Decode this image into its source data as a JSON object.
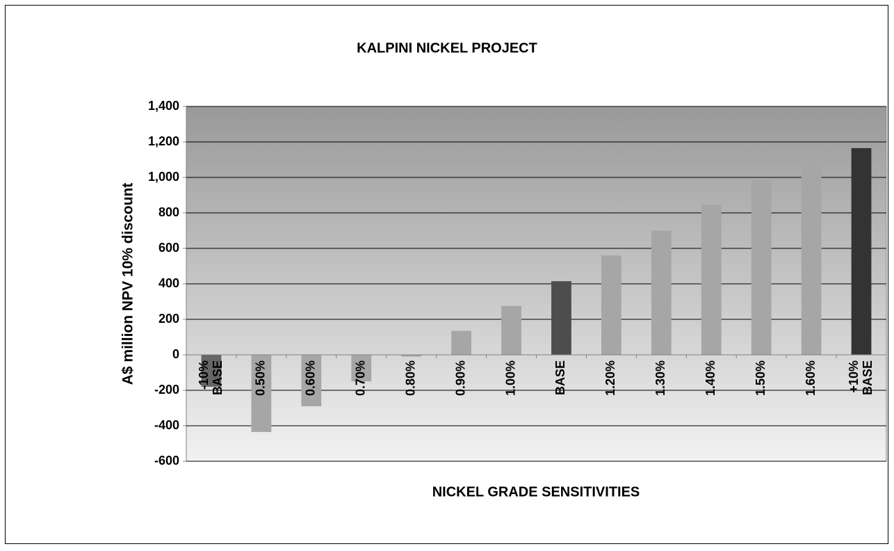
{
  "chart_data": {
    "type": "bar",
    "title": "KALPINI NICKEL PROJECT",
    "xlabel": "NICKEL GRADE SENSITIVITIES",
    "ylabel": "A$ million NPV 10% discount",
    "categories": [
      "-10% BASE",
      "0.50%",
      "0.60%",
      "0.70%",
      "0.80%",
      "0.90%",
      "1.00%",
      "BASE",
      "1.20%",
      "1.30%",
      "1.40%",
      "1.50%",
      "1.60%",
      "+10% BASE"
    ],
    "values": [
      -180,
      -435,
      -290,
      -150,
      -10,
      135,
      275,
      415,
      560,
      700,
      845,
      985,
      1080,
      1165
    ],
    "colors": [
      "#666666",
      "#a6a6a6",
      "#a6a6a6",
      "#a6a6a6",
      "#a6a6a6",
      "#a6a6a6",
      "#a6a6a6",
      "#4d4d4d",
      "#a6a6a6",
      "#a6a6a6",
      "#a6a6a6",
      "#a6a6a6",
      "#a6a6a6",
      "#333333"
    ],
    "ylim": [
      -600,
      1400
    ],
    "yticks": [
      -600,
      -400,
      -200,
      0,
      200,
      400,
      600,
      800,
      {
        "value": 1000,
        "label": "1,000"
      },
      {
        "value": 1200,
        "label": "1,200"
      },
      {
        "value": 1400,
        "label": "1,400"
      }
    ],
    "grid": true
  }
}
